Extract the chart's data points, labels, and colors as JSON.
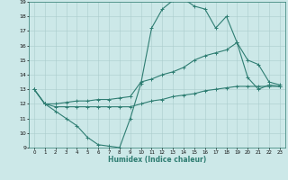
{
  "xlabel": "Humidex (Indice chaleur)",
  "bg_color": "#cce8e8",
  "grid_color": "#aacccc",
  "line_color": "#2e7d72",
  "xlim": [
    -0.5,
    23.5
  ],
  "ylim": [
    9,
    19
  ],
  "xticks": [
    0,
    1,
    2,
    3,
    4,
    5,
    6,
    7,
    8,
    9,
    10,
    11,
    12,
    13,
    14,
    15,
    16,
    17,
    18,
    19,
    20,
    21,
    22,
    23
  ],
  "yticks": [
    9,
    10,
    11,
    12,
    13,
    14,
    15,
    16,
    17,
    18,
    19
  ],
  "line1_x": [
    0,
    1,
    2,
    3,
    4,
    5,
    6,
    7,
    8,
    9,
    10,
    11,
    12,
    13,
    14,
    15,
    16,
    17,
    18,
    19,
    20,
    21,
    22,
    23
  ],
  "line1_y": [
    13,
    12,
    11.5,
    11,
    10.5,
    9.7,
    9.2,
    9.1,
    9.0,
    11.0,
    13.4,
    17.2,
    18.5,
    19.1,
    19.2,
    18.7,
    18.5,
    17.2,
    18.0,
    16.2,
    13.8,
    13.0,
    13.3,
    13.2
  ],
  "line2_x": [
    0,
    1,
    2,
    3,
    4,
    5,
    6,
    7,
    8,
    9,
    10,
    11,
    12,
    13,
    14,
    15,
    16,
    17,
    18,
    19,
    20,
    21,
    22,
    23
  ],
  "line2_y": [
    13.0,
    12.0,
    12.0,
    12.1,
    12.2,
    12.2,
    12.3,
    12.3,
    12.4,
    12.5,
    13.5,
    13.7,
    14.0,
    14.2,
    14.5,
    15.0,
    15.3,
    15.5,
    15.7,
    16.2,
    15.0,
    14.7,
    13.5,
    13.3
  ],
  "line3_x": [
    0,
    1,
    2,
    3,
    4,
    5,
    6,
    7,
    8,
    9,
    10,
    11,
    12,
    13,
    14,
    15,
    16,
    17,
    18,
    19,
    20,
    21,
    22,
    23
  ],
  "line3_y": [
    13.0,
    12.0,
    11.8,
    11.8,
    11.8,
    11.8,
    11.8,
    11.8,
    11.8,
    11.8,
    12.0,
    12.2,
    12.3,
    12.5,
    12.6,
    12.7,
    12.9,
    13.0,
    13.1,
    13.2,
    13.2,
    13.2,
    13.2,
    13.2
  ]
}
